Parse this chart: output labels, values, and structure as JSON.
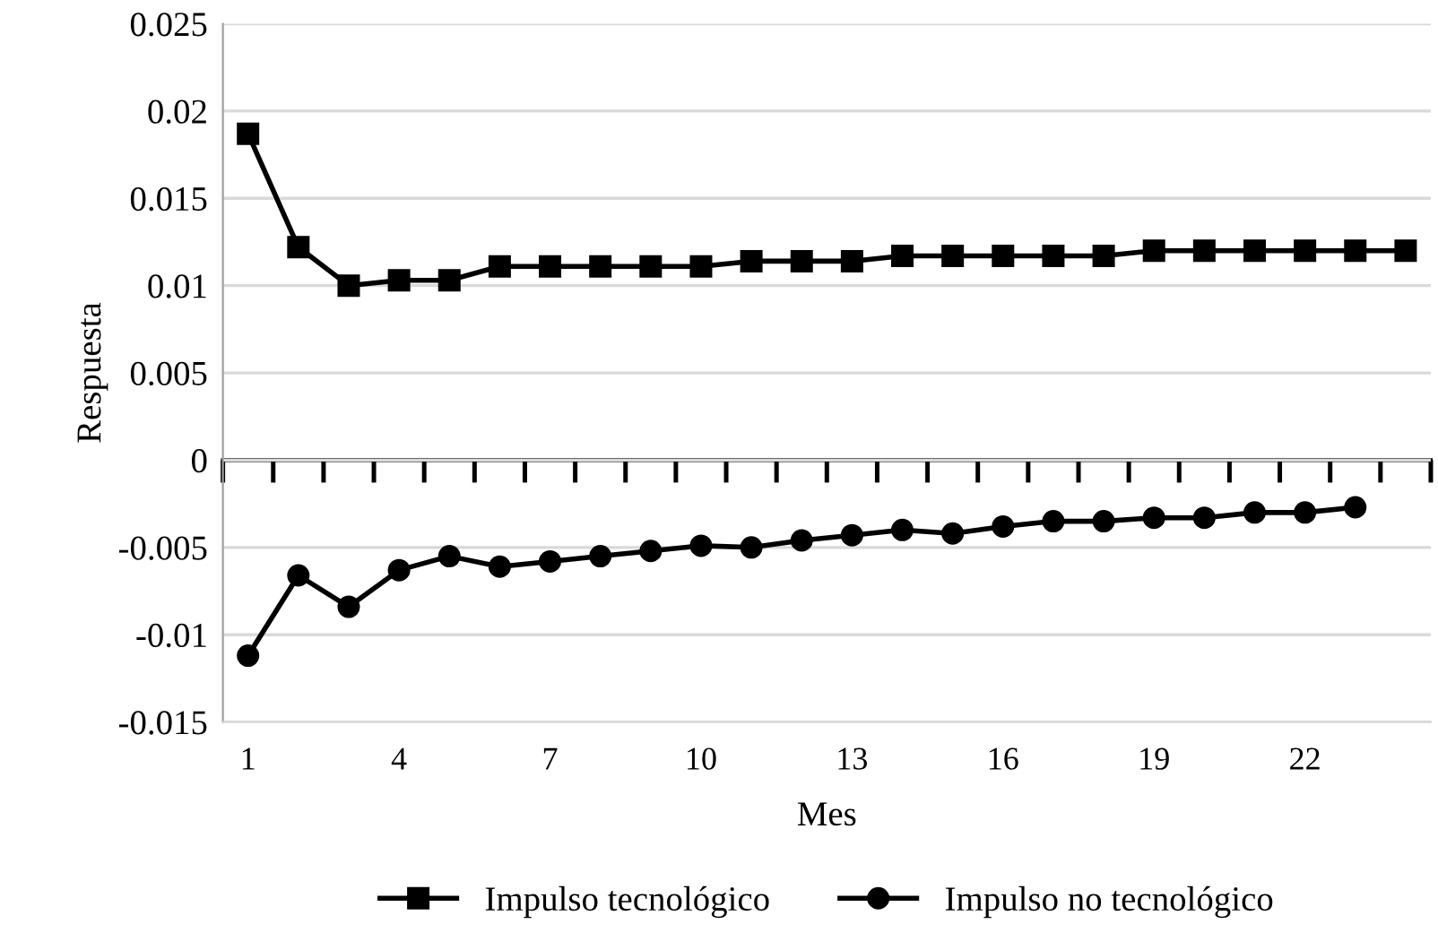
{
  "chart_data": {
    "type": "line",
    "xlabel": "Mes",
    "ylabel": "Respuesta",
    "categories": [
      "1",
      null,
      null,
      "4",
      null,
      null,
      "7",
      null,
      null,
      "10",
      null,
      null,
      "13",
      null,
      null,
      "16",
      null,
      null,
      "19",
      null,
      null,
      "22",
      null,
      null
    ],
    "series": [
      {
        "name": "Impulso tecnológico",
        "color": "#000000",
        "marker": "square",
        "values": [
          0.0187,
          0.0122,
          0.01,
          0.0103,
          0.0103,
          0.0111,
          0.0111,
          0.0111,
          0.0111,
          0.0111,
          0.0114,
          0.0114,
          0.0114,
          0.0117,
          0.0117,
          0.0117,
          0.0117,
          0.0117,
          0.012,
          0.012,
          0.012,
          0.012,
          0.012,
          0.012
        ]
      },
      {
        "name": "Impulso no tecnológico",
        "color": "#000000",
        "marker": "circle",
        "values": [
          -0.0112,
          -0.0066,
          -0.0084,
          -0.0063,
          -0.0055,
          -0.0061,
          -0.0058,
          -0.0055,
          -0.0052,
          -0.0049,
          -0.005,
          -0.0046,
          -0.0043,
          -0.004,
          -0.0042,
          -0.0038,
          -0.0035,
          -0.0035,
          -0.0033,
          -0.0033,
          -0.003,
          -0.003,
          -0.0027,
          null
        ]
      }
    ],
    "ylim": [
      -0.015,
      0.025
    ],
    "yticks": [
      -0.015,
      -0.01,
      -0.005,
      0,
      0.005,
      0.01,
      0.015,
      0.02,
      0.025
    ],
    "grid": "y",
    "legend": "bottom",
    "line_style": "solid"
  }
}
